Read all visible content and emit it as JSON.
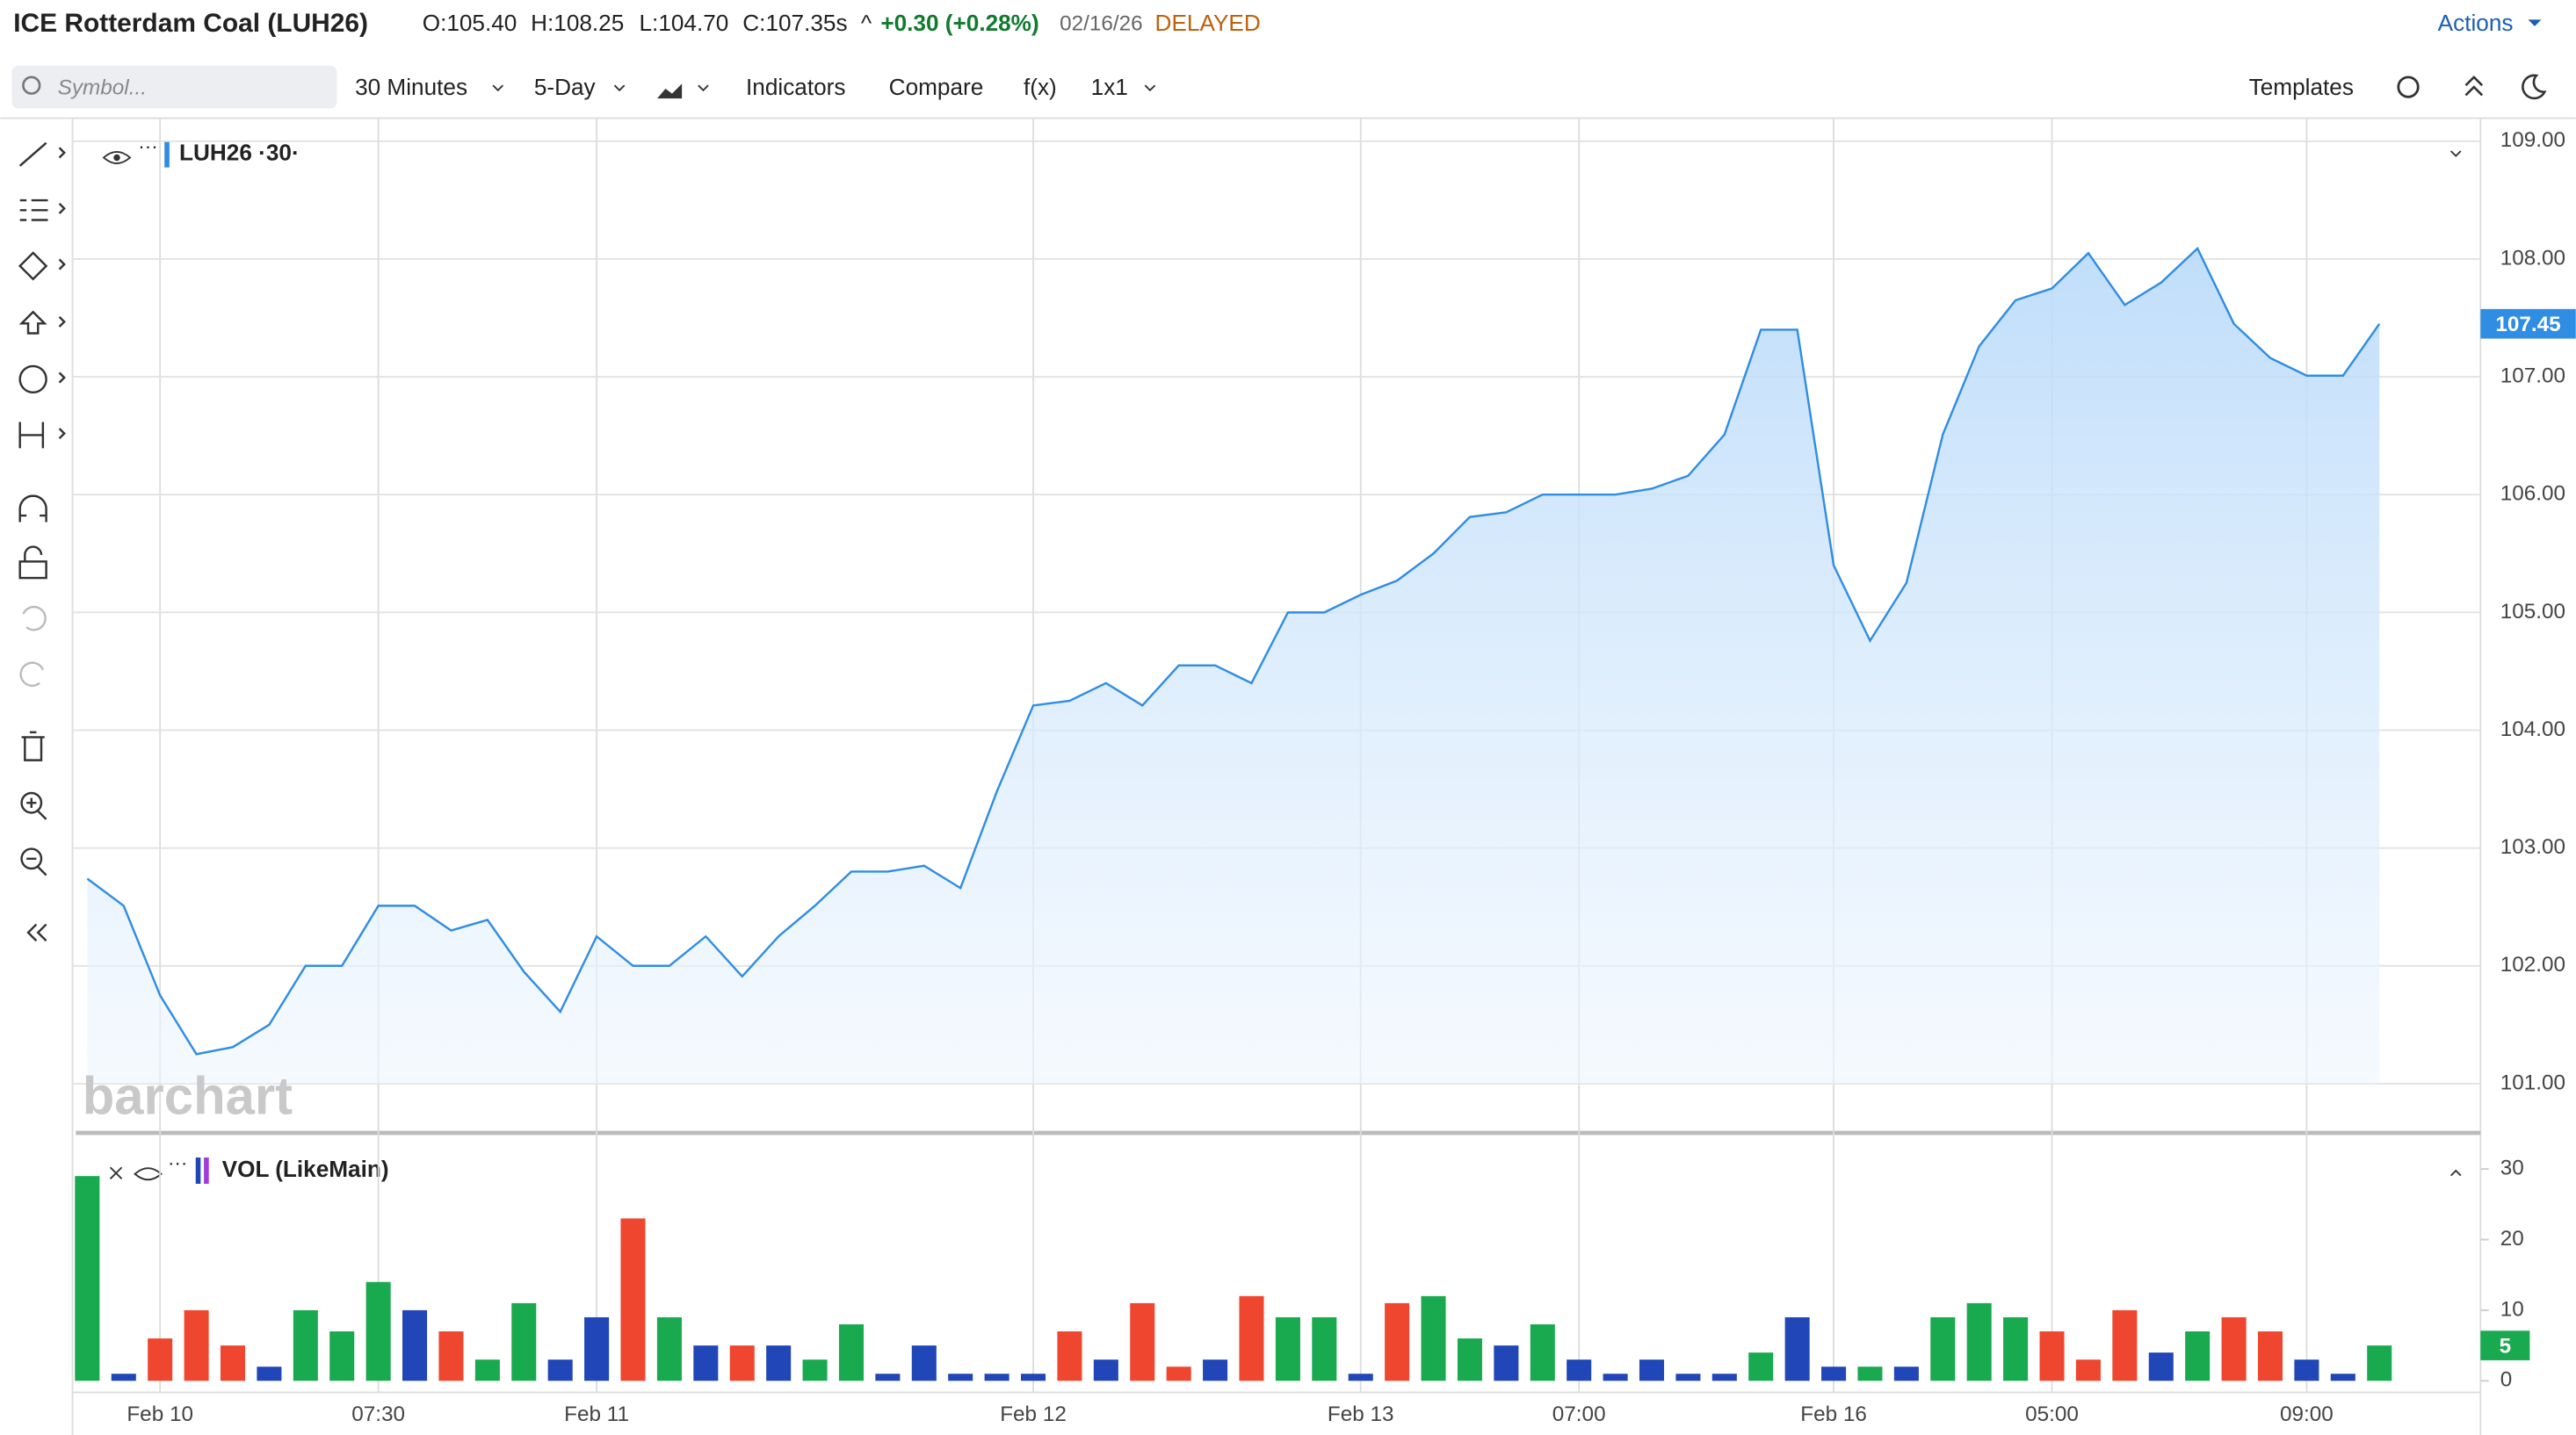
{
  "header": {
    "title": "ICE Rotterdam Coal (LUH26)",
    "ohlc": [
      "O:105.40",
      "H:108.25",
      "L:104.70",
      "C:107.35s"
    ],
    "caret": "^",
    "change": "+0.30 (+0.28%)",
    "date": "02/16/26",
    "status": "DELAYED",
    "actions": "Actions"
  },
  "toolbar": {
    "symbol_placeholder": "Symbol...",
    "interval": "30 Minutes",
    "range": "5-Day",
    "indicators": "Indicators",
    "compare": "Compare",
    "fx": "f(x)",
    "layout": "1x1",
    "templates": "Templates"
  },
  "watermark": "barchart",
  "chart_data": [
    {
      "type": "area",
      "series": [
        {
          "name": "LUH26 ·30·",
          "color": "#2f8de4",
          "values": [
            102.74,
            102.51,
            101.75,
            101.25,
            101.31,
            101.5,
            102.0,
            102.0,
            102.51,
            102.51,
            102.3,
            102.39,
            101.95,
            101.61,
            102.25,
            102.0,
            102.0,
            102.25,
            101.91,
            102.25,
            102.51,
            102.8,
            102.8,
            102.85,
            102.66,
            103.48,
            104.21,
            104.25,
            104.4,
            104.21,
            104.55,
            104.55,
            104.4,
            105.0,
            105.0,
            105.15,
            105.27,
            105.5,
            105.81,
            105.85,
            106.0,
            106.0,
            106.0,
            106.05,
            106.16,
            106.51,
            107.4,
            107.4,
            105.4,
            104.76,
            105.25,
            106.51,
            107.26,
            107.65,
            107.75,
            108.05,
            107.61,
            107.8,
            108.09,
            107.45,
            107.16,
            107.01,
            107.01,
            107.45
          ]
        }
      ],
      "categories": [
        null,
        null,
        "Feb 10",
        null,
        null,
        null,
        null,
        null,
        "07:30",
        null,
        null,
        null,
        null,
        null,
        "Feb 11",
        null,
        null,
        null,
        null,
        null,
        null,
        null,
        null,
        null,
        null,
        null,
        "Feb 12",
        null,
        null,
        null,
        null,
        null,
        null,
        null,
        null,
        "Feb 13",
        null,
        null,
        null,
        null,
        null,
        "07:00",
        null,
        null,
        null,
        null,
        null,
        null,
        "Feb 16",
        null,
        null,
        null,
        null,
        null,
        "05:00",
        null,
        null,
        null,
        null,
        null,
        null,
        "09:00",
        null,
        null
      ],
      "ylim": [
        101,
        109
      ],
      "yticks": [
        {
          "value": 101,
          "label": "101.00"
        },
        {
          "value": 102,
          "label": "102.00"
        },
        {
          "value": 103,
          "label": "103.00"
        },
        {
          "value": 104,
          "label": "104.00"
        },
        {
          "value": 105,
          "label": "105.00"
        },
        {
          "value": 106,
          "label": "106.00"
        },
        {
          "value": 107,
          "label": "107.00"
        },
        {
          "value": 108,
          "label": "108.00"
        },
        {
          "value": 109,
          "label": "109.00"
        }
      ],
      "grid": true,
      "last_value": 107.45
    },
    {
      "type": "bar",
      "series": [
        {
          "name": "VOL (LikeMain)",
          "values": [
            29,
            1,
            6,
            10,
            5,
            2,
            10,
            7,
            14,
            10,
            7,
            3,
            11,
            3,
            9,
            23,
            9,
            5,
            5,
            5,
            3,
            8,
            1,
            5,
            1,
            1,
            1,
            7,
            3,
            11,
            2,
            3,
            12,
            9,
            9,
            1,
            11,
            12,
            6,
            5,
            8,
            3,
            1,
            3,
            1,
            1,
            4,
            9,
            2,
            2,
            2,
            9,
            11,
            9,
            7,
            3,
            10,
            4,
            7,
            9,
            7,
            3,
            1,
            5
          ],
          "colors": [
            "#19a94f",
            "#2046b8",
            "#ef4630",
            "#ef4630",
            "#ef4630",
            "#2046b8",
            "#19a94f",
            "#19a94f",
            "#19a94f",
            "#2046b8",
            "#ef4630",
            "#19a94f",
            "#19a94f",
            "#2046b8",
            "#2046b8",
            "#ef4630",
            "#19a94f",
            "#2046b8",
            "#ef4630",
            "#2046b8",
            "#19a94f",
            "#19a94f",
            "#2046b8",
            "#2046b8",
            "#2046b8",
            "#2046b8",
            "#2046b8",
            "#ef4630",
            "#2046b8",
            "#ef4630",
            "#ef4630",
            "#2046b8",
            "#ef4630",
            "#19a94f",
            "#19a94f",
            "#2046b8",
            "#ef4630",
            "#19a94f",
            "#19a94f",
            "#2046b8",
            "#19a94f",
            "#2046b8",
            "#2046b8",
            "#2046b8",
            "#2046b8",
            "#2046b8",
            "#19a94f",
            "#2046b8",
            "#2046b8",
            "#19a94f",
            "#2046b8",
            "#19a94f",
            "#19a94f",
            "#19a94f",
            "#ef4630",
            "#ef4630",
            "#ef4630",
            "#2046b8",
            "#19a94f",
            "#ef4630",
            "#ef4630",
            "#2046b8",
            "#2046b8",
            "#19a94f"
          ]
        }
      ],
      "ylim": [
        0,
        30
      ],
      "yticks": [
        0,
        10,
        20,
        30
      ],
      "last_value": 5
    }
  ]
}
